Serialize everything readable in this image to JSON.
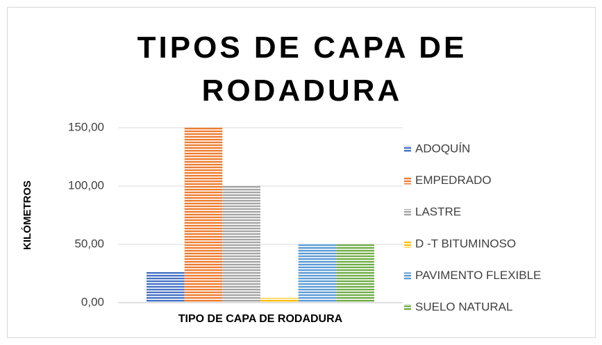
{
  "chart_data": {
    "type": "bar",
    "title": "TIPOS DE CAPA DE RODADURA",
    "ylabel": "KILÓMETROS",
    "categories": [
      "TIPO DE CAPA DE RODADURA"
    ],
    "series": [
      {
        "name": "ADOQUÍN",
        "color": "#4472c4",
        "values": [
          27
        ]
      },
      {
        "name": "EMPEDRADO",
        "color": "#ed7d31",
        "values": [
          150
        ]
      },
      {
        "name": "LASTRE",
        "color": "#a5a5a5",
        "values": [
          100
        ]
      },
      {
        "name": "D -T BITUMINOSO",
        "color": "#ffc000",
        "values": [
          4
        ]
      },
      {
        "name": "PAVIMENTO FLEXIBLE",
        "color": "#5b9bd5",
        "values": [
          51
        ]
      },
      {
        "name": "SUELO NATURAL",
        "color": "#70ad47",
        "values": [
          50
        ]
      }
    ],
    "ylim": [
      0,
      150
    ],
    "yticks": [
      {
        "value": 0,
        "label": "0,00"
      },
      {
        "value": 50,
        "label": "50,00"
      },
      {
        "value": 100,
        "label": "100,00"
      },
      {
        "value": 150,
        "label": "150,00"
      }
    ],
    "grid": true,
    "legend": "right"
  }
}
